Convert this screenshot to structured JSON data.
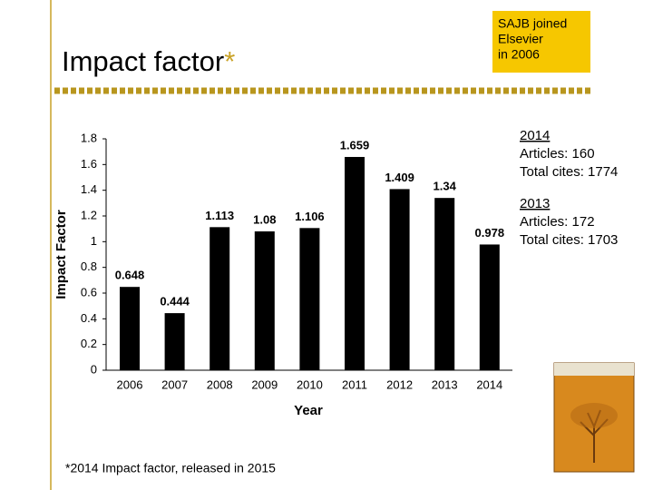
{
  "title": "Impact factor",
  "title_mark": "*",
  "callout": [
    "SAJB joined",
    "Elsevier",
    "in 2006"
  ],
  "side_notes": [
    {
      "year": "2014",
      "lines": [
        "Articles: 160",
        "Total cites: 1774"
      ]
    },
    {
      "year": "2013",
      "lines": [
        "Articles: 172",
        "Total cites: 1703"
      ]
    }
  ],
  "footnote": "*2014 Impact factor, released in 2015",
  "chart_data": {
    "type": "bar",
    "x_label": "Year",
    "y_label": "Impact Factor",
    "categories": [
      "2006",
      "2007",
      "2008",
      "2009",
      "2010",
      "2011",
      "2012",
      "2013",
      "2014"
    ],
    "values": [
      0.648,
      0.444,
      1.113,
      1.08,
      1.106,
      1.659,
      1.409,
      1.34,
      0.978
    ],
    "color": "#000000",
    "ylim": [
      0,
      1.8
    ],
    "yticks": [
      0,
      0.2,
      0.4,
      0.6,
      0.8,
      1,
      1.2,
      1.4,
      1.6,
      1.8
    ],
    "grid": false
  }
}
